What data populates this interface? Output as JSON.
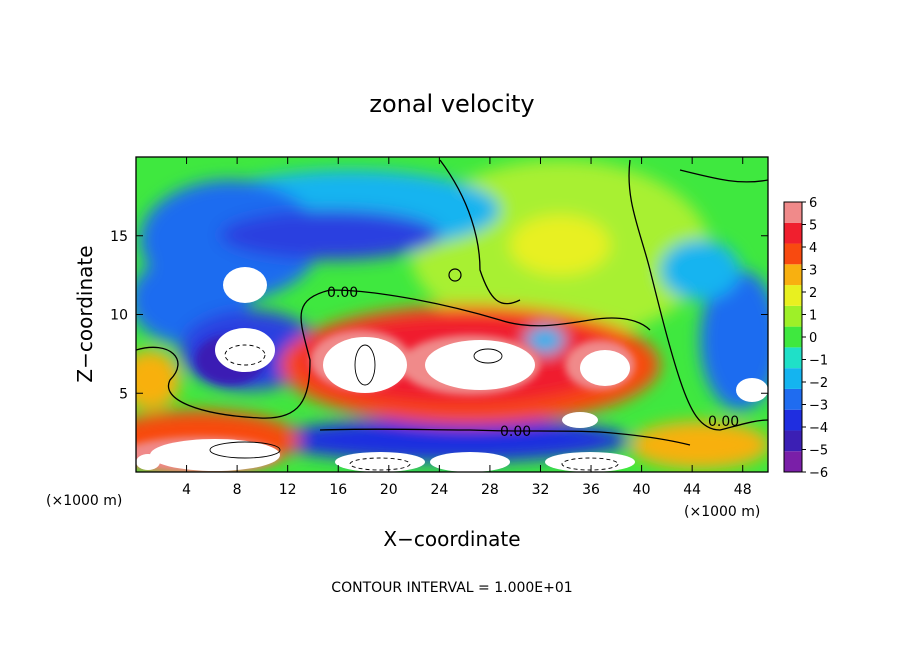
{
  "chart_data": {
    "type": "heatmap",
    "title": "zonal velocity",
    "xlabel": "X−coordinate",
    "ylabel": "Z−coordinate",
    "x_unit": "(×1000 m)",
    "x_unit_right": "(×1000 m)",
    "xlim": [
      0,
      50
    ],
    "ylim": [
      0,
      20
    ],
    "x_ticks": [
      4,
      8,
      12,
      16,
      20,
      24,
      28,
      32,
      36,
      40,
      44,
      48
    ],
    "y_ticks": [
      5,
      10,
      15
    ],
    "colorbar": {
      "min": -6,
      "max": 6,
      "ticks": [
        6,
        5,
        4,
        3,
        2,
        1,
        0,
        -1,
        -2,
        -3,
        -4,
        -5,
        -6
      ],
      "tick_labels": [
        "6",
        "5",
        "4",
        "3",
        "2",
        "1",
        "0",
        "−1",
        "−2",
        "−3",
        "−4",
        "−5",
        "−6"
      ],
      "colors": [
        "#7a1fa8",
        "#3b1fb4",
        "#1f2ee0",
        "#1f6cf0",
        "#14b4f0",
        "#1fe0c8",
        "#3fe83f",
        "#9ef028",
        "#e8f020",
        "#f8b010",
        "#f84a10",
        "#f01f2e",
        "#f08a8a"
      ]
    },
    "contour_labels": [
      "0.00",
      "0.00",
      "0.00"
    ],
    "contour_interval_label": "CONTOUR INTERVAL = 1.000E+01"
  }
}
